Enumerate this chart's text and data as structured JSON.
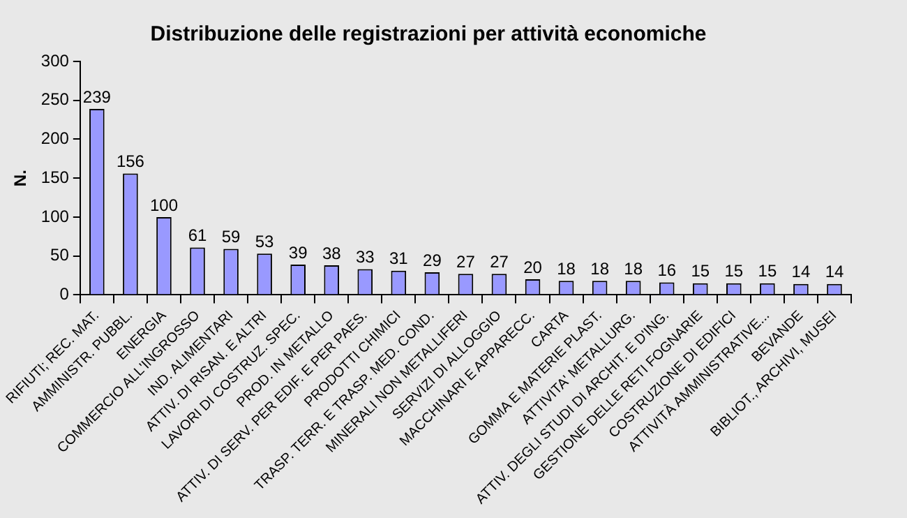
{
  "chart_data": {
    "type": "bar",
    "title": "Distribuzione delle registrazioni per attività economiche",
    "ylabel": "N.",
    "categories": [
      "RIFIUTI; REC. MAT.",
      "AMMINISTR. PUBBL.",
      "ENERGIA",
      "COMMERCIO ALL'INGROSSO",
      "IND. ALIMENTARI",
      "ATTIV. DI RISAN. E ALTRI",
      "LAVORI DI COSTRUZ. SPEC.",
      "PROD. IN METALLO",
      "ATTIV. DI SERV. PER EDIF. E PER PAES.",
      "PRODOTTI CHIMICI",
      "TRASP. TERR. E TRASP. MED. COND.",
      "MINERALI NON METALLIFERI",
      "SERVIZI DI ALLOGGIO",
      "MACCHINARI E APPARECC.",
      "CARTA",
      "GOMMA E MATERIE PLAST.",
      "ATTIVITA' METALLURG.",
      "ATTIV. DEGLI STUDI DI ARCHIT. E D'ING.",
      "GESTIONE DELLE RETI FOGNARIE",
      "COSTRUZIONE DI EDIFICI",
      "ATTIVITÀ AMMINISTRATIVE...",
      "BEVANDE",
      "BIBLIOT., ARCHIVI, MUSEI"
    ],
    "values": [
      239,
      156,
      100,
      61,
      59,
      53,
      39,
      38,
      33,
      31,
      29,
      27,
      27,
      20,
      18,
      18,
      18,
      16,
      15,
      15,
      15,
      14,
      14
    ],
    "color": "#9999ff",
    "ylim": [
      0,
      300
    ],
    "yticks": [
      0,
      50,
      100,
      150,
      200,
      250,
      300
    ],
    "grid": false,
    "legend": false,
    "data_labels": true
  }
}
